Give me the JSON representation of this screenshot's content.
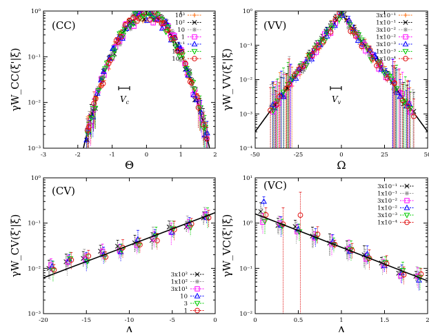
{
  "colors": {
    "orange": "#ff6600",
    "black": "#000000",
    "grey": "#999999",
    "magenta": "#ff00ff",
    "blue": "#0000ff",
    "green": "#00cc00",
    "red": "#e01010"
  },
  "chart_data": [
    {
      "id": "cc",
      "type": "scatter",
      "panel_label": "(CC)",
      "xlabel": "Θ",
      "ylabel": "γW_CC(ξ'|ξ)",
      "xlim": [
        -3,
        2
      ],
      "ylim": [
        0.001,
        1
      ],
      "log_y": true,
      "x_ticks": [
        "-3",
        "-2",
        "-1",
        "0",
        "1",
        "2"
      ],
      "y_ticks": [
        "10⁻³",
        "10⁻²",
        "10⁻¹",
        "10⁰"
      ],
      "legend_position": "top-right",
      "annotation": "V_c",
      "fit_curve": {
        "type": "gaussian",
        "peak": 0.85,
        "sigma": 0.5
      },
      "series": [
        {
          "name": "10³",
          "color": "orange",
          "marker": "plus"
        },
        {
          "name": "10²",
          "color": "black",
          "marker": "cross"
        },
        {
          "name": "10",
          "color": "grey",
          "marker": "star"
        },
        {
          "name": "1",
          "color": "magenta",
          "marker": "square"
        },
        {
          "name": "10⁻¹",
          "color": "blue",
          "marker": "triangle"
        },
        {
          "name": "10⁻²",
          "color": "green",
          "marker": "tridown"
        },
        {
          "name": "10⁻³",
          "color": "red",
          "marker": "circle"
        }
      ]
    },
    {
      "id": "vv",
      "type": "scatter",
      "panel_label": "(VV)",
      "xlabel": "Ω",
      "ylabel": "γW_VV(ξ'|ξ)",
      "xlim": [
        -50,
        50
      ],
      "ylim": [
        0.0001,
        1
      ],
      "log_y": true,
      "x_ticks": [
        "-50",
        "-25",
        "0",
        "25",
        "50"
      ],
      "y_ticks": [
        "10⁻⁴",
        "10⁻³",
        "10⁻²",
        "10⁻¹",
        "10⁰"
      ],
      "legend_position": "top-right",
      "annotation": "V_v",
      "fit_curve": {
        "type": "exponential",
        "peak": 0.85,
        "scale": 6.3
      },
      "series": [
        {
          "name": "3x10⁻¹",
          "color": "orange",
          "marker": "plus"
        },
        {
          "name": "1x10⁻¹",
          "color": "black",
          "marker": "cross"
        },
        {
          "name": "3x10⁻²",
          "color": "grey",
          "marker": "star"
        },
        {
          "name": "1x10⁻²",
          "color": "magenta",
          "marker": "square"
        },
        {
          "name": "3x10⁻³",
          "color": "blue",
          "marker": "triangle"
        },
        {
          "name": "1x10⁻³",
          "color": "green",
          "marker": "tridown"
        },
        {
          "name": "1x10⁻⁴",
          "color": "red",
          "marker": "circle"
        }
      ]
    },
    {
      "id": "cv",
      "type": "scatter",
      "panel_label": "(CV)",
      "xlabel": "Λ",
      "ylabel": "γW_CV(ξ'|ξ)",
      "xlim": [
        -20,
        0
      ],
      "ylim": [
        0.001,
        1
      ],
      "log_y": true,
      "x_ticks": [
        "-20",
        "-15",
        "-10",
        "-5",
        "0"
      ],
      "y_ticks": [
        "10⁻³",
        "10⁻²",
        "10⁻¹",
        "10⁰"
      ],
      "legend_position": "bottom-right",
      "fit_line": {
        "x": [
          -20,
          0
        ],
        "y": [
          0.0062,
          0.17
        ]
      },
      "x_points": [
        -19,
        -17,
        -15,
        -13,
        -11,
        -9,
        -7,
        -5,
        -3,
        -1
      ],
      "y_points": [
        0.011,
        0.014,
        0.016,
        0.021,
        0.028,
        0.038,
        0.049,
        0.07,
        0.093,
        0.15
      ],
      "series": [
        {
          "name": "3x10²",
          "color": "black",
          "marker": "cross"
        },
        {
          "name": "1x10²",
          "color": "grey",
          "marker": "star"
        },
        {
          "name": "3x10¹",
          "color": "magenta",
          "marker": "square"
        },
        {
          "name": "10",
          "color": "blue",
          "marker": "triangle"
        },
        {
          "name": "3",
          "color": "green",
          "marker": "tridown"
        },
        {
          "name": "1",
          "color": "red",
          "marker": "circle"
        }
      ]
    },
    {
      "id": "vc",
      "type": "scatter",
      "panel_label": "(VC)",
      "xlabel": "Λ",
      "ylabel": "γW_VC(ξ'|ξ)",
      "xlim": [
        0,
        2
      ],
      "ylim": [
        0.01,
        10
      ],
      "log_y": true,
      "x_ticks": [
        "0",
        "0.5",
        "1",
        "1.5",
        "2"
      ],
      "y_ticks": [
        "10⁻²",
        "10⁻¹",
        "10⁰",
        "10¹"
      ],
      "legend_position": "top-right",
      "fit_line": {
        "x": [
          0,
          2
        ],
        "y": [
          1.6,
          0.053
        ]
      },
      "x_points": [
        0.1,
        0.3,
        0.5,
        0.7,
        0.9,
        1.1,
        1.3,
        1.5,
        1.7,
        1.9
      ],
      "y_points": [
        1.3,
        0.9,
        0.75,
        0.5,
        0.38,
        0.25,
        0.18,
        0.12,
        0.08,
        0.065
      ],
      "series": [
        {
          "name": "3x10⁻¹",
          "color": "black",
          "marker": "cross"
        },
        {
          "name": "1x10⁻¹",
          "color": "grey",
          "marker": "star"
        },
        {
          "name": "3x10⁻²",
          "color": "magenta",
          "marker": "square"
        },
        {
          "name": "1x10⁻²",
          "color": "blue",
          "marker": "triangle"
        },
        {
          "name": "3x10⁻³",
          "color": "green",
          "marker": "tridown"
        },
        {
          "name": "1x10⁻⁴",
          "color": "red",
          "marker": "circle"
        }
      ]
    }
  ]
}
